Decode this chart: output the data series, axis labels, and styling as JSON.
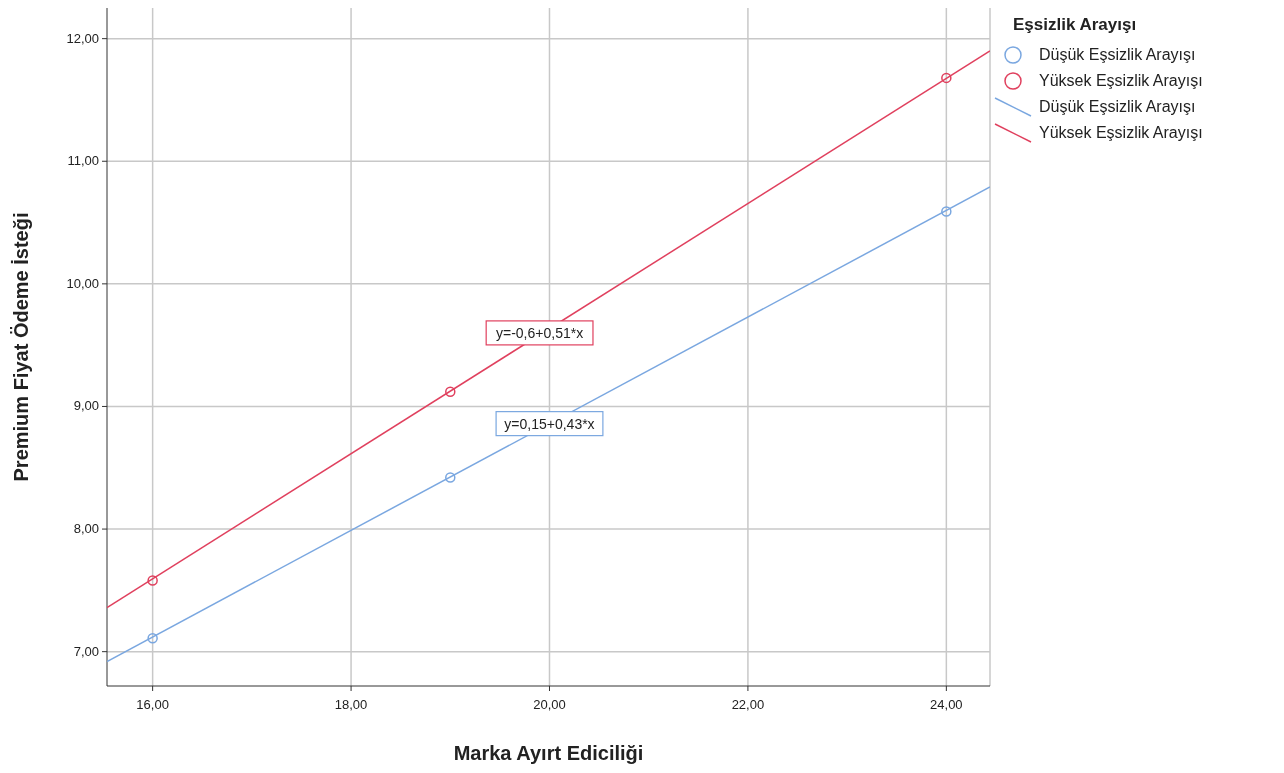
{
  "chart_data": {
    "type": "scatter",
    "xlabel": "Marka Ayırt Ediciliği",
    "ylabel": "Premium Fiyat Ödeme İsteği",
    "legend_title": "Eşsizlik Arayışı",
    "legend": "top right",
    "grid": true,
    "xlim": [
      15.54,
      24.44
    ],
    "xticks": [
      {
        "value": 16,
        "label": "16,00"
      },
      {
        "value": 18,
        "label": "18,00"
      },
      {
        "value": 20,
        "label": "20,00"
      },
      {
        "value": 22,
        "label": "22,00"
      },
      {
        "value": 24,
        "label": "24,00"
      }
    ],
    "ylim": [
      6.72,
      12.25
    ],
    "yticks": [
      {
        "value": 7,
        "label": "7,00"
      },
      {
        "value": 8,
        "label": "8,00"
      },
      {
        "value": 9,
        "label": "9,00"
      },
      {
        "value": 10,
        "label": "10,00"
      },
      {
        "value": 11,
        "label": "11,00"
      },
      {
        "value": 12,
        "label": "12,00"
      }
    ],
    "series": [
      {
        "name": "Düşük Eşsizlik Arayışı",
        "type": "scatter",
        "marker": "circle",
        "color": "#7aa7e0",
        "x": [
          16,
          19,
          24
        ],
        "values": [
          7.11,
          8.42,
          10.59
        ]
      },
      {
        "name": "Yüksek Eşsizlik Arayışı",
        "type": "scatter",
        "marker": "circle",
        "color": "#e0405e",
        "x": [
          16,
          19,
          24
        ],
        "values": [
          7.58,
          9.12,
          11.68
        ]
      },
      {
        "name": "Düşük Eşsizlik Arayışı",
        "type": "line",
        "marker": "none",
        "color": "#7aa7e0",
        "x": [
          15.54,
          24.44
        ],
        "values": [
          6.92,
          10.79
        ]
      },
      {
        "name": "Yüksek Eşsizlik Arayışı",
        "type": "line",
        "marker": "none",
        "color": "#e0405e",
        "x": [
          15.54,
          24.44
        ],
        "values": [
          7.36,
          11.9
        ]
      }
    ],
    "annotations": [
      {
        "text": "y=-0,6+0,51*x",
        "x": 19.9,
        "y": 9.6
      },
      {
        "text": "y=0,15+0,43*x",
        "x": 20,
        "y": 8.86
      }
    ]
  }
}
